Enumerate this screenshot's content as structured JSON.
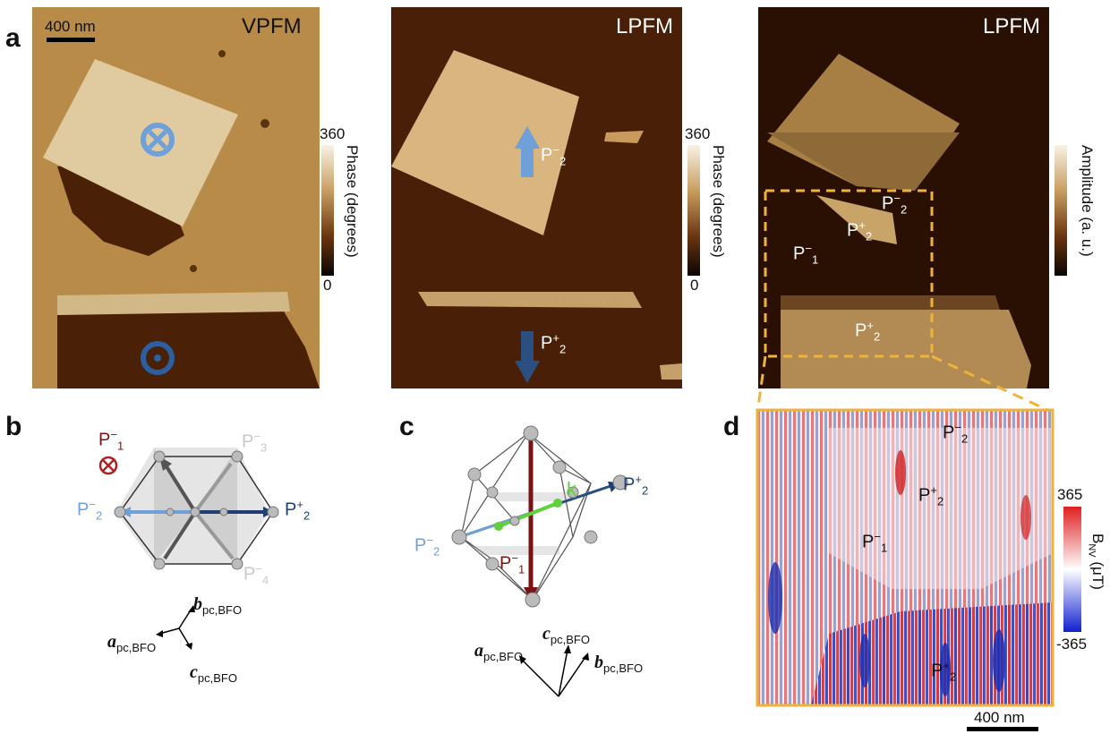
{
  "panels": {
    "a": "a",
    "b": "b",
    "c": "c",
    "d": "d"
  },
  "images": {
    "vpfm_title": "VPFM",
    "lpfm_phase_title": "LPFM",
    "lpfm_amp_title": "LPFM",
    "scalebar_top": "400 nm",
    "scalebar_bottom": "400 nm"
  },
  "colorbars": {
    "phase1": {
      "max": "360",
      "min": "0",
      "label": "Phase (degrees)"
    },
    "phase2": {
      "max": "360",
      "min": "0",
      "label": "Phase (degrees)"
    },
    "amplitude": {
      "label": "Amplitude (a. u.)"
    },
    "bnv": {
      "max": "365",
      "min": "-365",
      "label": "B",
      "label_sub": "NV",
      "label_unit": " (μT)"
    }
  },
  "labels": {
    "P": "P",
    "sub1": "1",
    "sub2": "2",
    "sub3": "3",
    "sub4": "4",
    "minus": "−",
    "plus": "+",
    "k": "k"
  },
  "axes": {
    "a": "a",
    "b": "b",
    "c": "c",
    "sub": "pc,BFO"
  },
  "colors": {
    "blue_light": "#6fa0d8",
    "blue_dark": "#1f3f73",
    "red_dark": "#7a1414",
    "green": "#5fd13a",
    "orange_dash": "#f0b33a"
  }
}
